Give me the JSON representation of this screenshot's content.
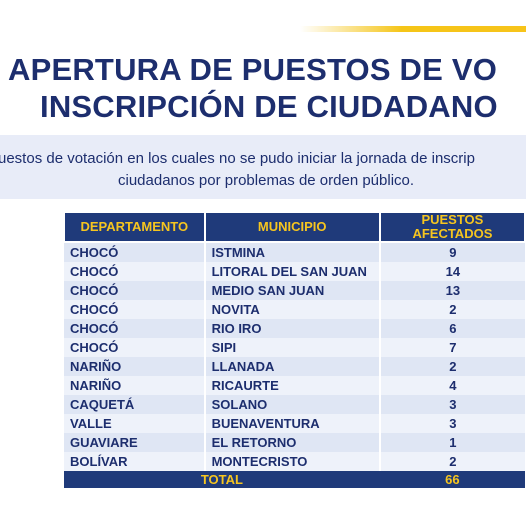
{
  "header": {
    "title_line1": "APERTURA DE PUESTOS DE VO",
    "title_line2": "INSCRIPCIÓN DE CIUDADANO",
    "subtitle_line1": "uestos de votación en los cuales no se pudo iniciar la jornada de inscrip",
    "subtitle_line2": "ciudadanos por problemas de orden público."
  },
  "colors": {
    "navy": "#1f3a7a",
    "title_blue": "#1d2e6e",
    "gold": "#f6c51f",
    "row_light": "#eef2fa",
    "row_dark": "#dfe6f4"
  },
  "table": {
    "headers": {
      "departamento": "DEPARTAMENTO",
      "municipio": "MUNICIPIO",
      "puestos_line1": "PUESTOS",
      "puestos_line2": "AFECTADOS"
    },
    "rows": [
      {
        "departamento": "CHOCÓ",
        "municipio": "ISTMINA",
        "puestos": "9"
      },
      {
        "departamento": "CHOCÓ",
        "municipio": "LITORAL DEL SAN JUAN",
        "puestos": "14"
      },
      {
        "departamento": "CHOCÓ",
        "municipio": "MEDIO SAN JUAN",
        "puestos": "13"
      },
      {
        "departamento": "CHOCÓ",
        "municipio": "NOVITA",
        "puestos": "2"
      },
      {
        "departamento": "CHOCÓ",
        "municipio": "RIO IRO",
        "puestos": "6"
      },
      {
        "departamento": "CHOCÓ",
        "municipio": "SIPI",
        "puestos": "7"
      },
      {
        "departamento": "NARIÑO",
        "municipio": "LLANADA",
        "puestos": "2"
      },
      {
        "departamento": "NARIÑO",
        "municipio": "RICAURTE",
        "puestos": "4"
      },
      {
        "departamento": "CAQUETÁ",
        "municipio": "SOLANO",
        "puestos": "3"
      },
      {
        "departamento": "VALLE",
        "municipio": "BUENAVENTURA",
        "puestos": "3"
      },
      {
        "departamento": "GUAVIARE",
        "municipio": "EL RETORNO",
        "puestos": "1"
      },
      {
        "departamento": "BOLÍVAR",
        "municipio": "MONTECRISTO",
        "puestos": "2"
      }
    ],
    "total_label": "TOTAL",
    "total_value": "66"
  }
}
